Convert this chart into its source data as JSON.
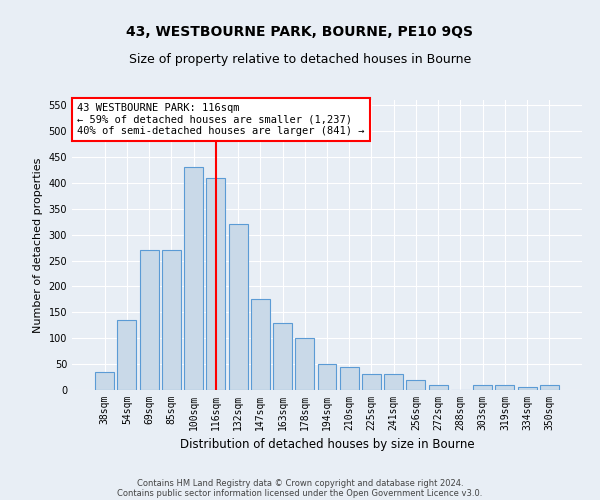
{
  "title_line1": "43, WESTBOURNE PARK, BOURNE, PE10 9QS",
  "title_line2": "Size of property relative to detached houses in Bourne",
  "xlabel": "Distribution of detached houses by size in Bourne",
  "ylabel": "Number of detached properties",
  "categories": [
    "38sqm",
    "54sqm",
    "69sqm",
    "85sqm",
    "100sqm",
    "116sqm",
    "132sqm",
    "147sqm",
    "163sqm",
    "178sqm",
    "194sqm",
    "210sqm",
    "225sqm",
    "241sqm",
    "256sqm",
    "272sqm",
    "288sqm",
    "303sqm",
    "319sqm",
    "334sqm",
    "350sqm"
  ],
  "values": [
    35,
    135,
    270,
    270,
    430,
    410,
    320,
    175,
    130,
    100,
    50,
    45,
    30,
    30,
    20,
    10,
    0,
    10,
    10,
    5,
    10
  ],
  "bar_color": "#c9d9e8",
  "bar_edge_color": "#5b9bd5",
  "vline_x": 5,
  "vline_color": "red",
  "ylim": [
    0,
    560
  ],
  "yticks": [
    0,
    50,
    100,
    150,
    200,
    250,
    300,
    350,
    400,
    450,
    500,
    550
  ],
  "annotation_text": "43 WESTBOURNE PARK: 116sqm\n← 59% of detached houses are smaller (1,237)\n40% of semi-detached houses are larger (841) →",
  "annotation_box_color": "white",
  "annotation_box_edge": "red",
  "footer_line1": "Contains HM Land Registry data © Crown copyright and database right 2024.",
  "footer_line2": "Contains public sector information licensed under the Open Government Licence v3.0.",
  "background_color": "#e8eef5",
  "plot_bg_color": "#e8eef5",
  "grid_color": "white",
  "title_fontsize": 10,
  "subtitle_fontsize": 9,
  "tick_fontsize": 7,
  "ylabel_fontsize": 8,
  "xlabel_fontsize": 8.5,
  "annotation_fontsize": 7.5,
  "footer_fontsize": 6
}
